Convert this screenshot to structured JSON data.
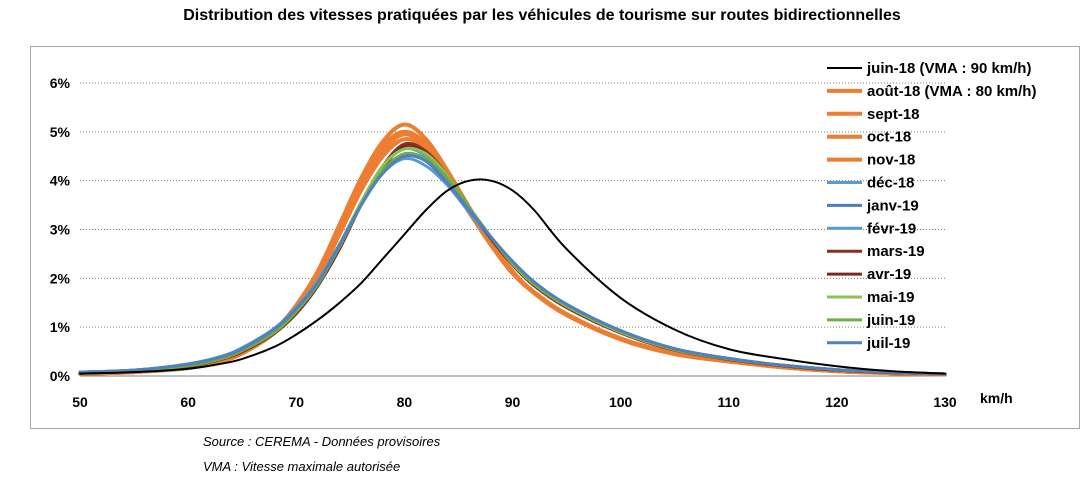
{
  "title": "Distribution des vitesses pratiquées par les véhicules de tourisme sur routes bidirectionnelles",
  "source_note": "Source : CEREMA - Données provisoires",
  "vma_note": "VMA : Vitesse maximale autorisée",
  "chart_data": {
    "type": "line",
    "title": "Distribution des vitesses pratiquées par les véhicules de tourisme sur routes bidirectionnelles",
    "xlabel": "km/h",
    "ylabel": "",
    "xlim": [
      50,
      130
    ],
    "ylim": [
      0,
      6
    ],
    "x_ticks": [
      50,
      60,
      70,
      80,
      90,
      100,
      110,
      120,
      130
    ],
    "y_ticks": [
      {
        "value": 0,
        "label": "0%"
      },
      {
        "value": 1,
        "label": "1%"
      },
      {
        "value": 2,
        "label": "2%"
      },
      {
        "value": 3,
        "label": "3%"
      },
      {
        "value": 4,
        "label": "4%"
      },
      {
        "value": 5,
        "label": "5%"
      },
      {
        "value": 6,
        "label": "6%"
      }
    ],
    "grid": "horizontal dotted",
    "legend_position": "right",
    "x": [
      50,
      55,
      60,
      63,
      65,
      68,
      70,
      72,
      74,
      76,
      78,
      80,
      82,
      84,
      86,
      88,
      90,
      92,
      95,
      100,
      105,
      110,
      115,
      120,
      125,
      130
    ],
    "series": [
      {
        "name": "juin-18 (VMA : 90 km/h)",
        "color": "#000000",
        "width": 2,
        "values": [
          0.05,
          0.08,
          0.15,
          0.25,
          0.35,
          0.6,
          0.85,
          1.15,
          1.5,
          1.9,
          2.4,
          2.9,
          3.4,
          3.8,
          4.0,
          4.0,
          3.8,
          3.4,
          2.6,
          1.6,
          0.95,
          0.55,
          0.35,
          0.2,
          0.1,
          0.05
        ]
      },
      {
        "name": "août-18 (VMA : 80 km/h)",
        "color": "#ed7d31",
        "width": 4,
        "values": [
          0.05,
          0.08,
          0.18,
          0.32,
          0.5,
          0.95,
          1.45,
          2.15,
          3.1,
          4.05,
          4.8,
          5.15,
          4.85,
          4.2,
          3.45,
          2.75,
          2.15,
          1.7,
          1.25,
          0.75,
          0.45,
          0.3,
          0.18,
          0.1,
          0.06,
          0.03
        ]
      },
      {
        "name": "sept-18",
        "color": "#ed7d31",
        "width": 4,
        "values": [
          0.05,
          0.08,
          0.17,
          0.31,
          0.48,
          0.92,
          1.4,
          2.1,
          3.0,
          3.95,
          4.7,
          5.0,
          4.75,
          4.1,
          3.4,
          2.7,
          2.12,
          1.7,
          1.25,
          0.75,
          0.45,
          0.3,
          0.18,
          0.1,
          0.06,
          0.03
        ]
      },
      {
        "name": "oct-18",
        "color": "#ed7d31",
        "width": 4,
        "values": [
          0.05,
          0.08,
          0.17,
          0.3,
          0.47,
          0.9,
          1.38,
          2.05,
          2.95,
          3.9,
          4.6,
          4.95,
          4.7,
          4.05,
          3.35,
          2.68,
          2.1,
          1.7,
          1.25,
          0.76,
          0.46,
          0.3,
          0.18,
          0.1,
          0.06,
          0.03
        ]
      },
      {
        "name": "nov-18",
        "color": "#ed7d31",
        "width": 4,
        "values": [
          0.05,
          0.08,
          0.16,
          0.3,
          0.46,
          0.88,
          1.35,
          2.0,
          2.9,
          3.8,
          4.5,
          4.85,
          4.65,
          4.05,
          3.35,
          2.7,
          2.12,
          1.72,
          1.27,
          0.77,
          0.47,
          0.3,
          0.18,
          0.1,
          0.06,
          0.03
        ]
      },
      {
        "name": "déc-18",
        "color": "#5b9bd5",
        "width": 3,
        "values": [
          0.08,
          0.12,
          0.25,
          0.4,
          0.58,
          0.98,
          1.4,
          1.95,
          2.7,
          3.5,
          4.15,
          4.45,
          4.3,
          3.9,
          3.35,
          2.8,
          2.3,
          1.9,
          1.45,
          0.92,
          0.55,
          0.35,
          0.22,
          0.13,
          0.08,
          0.04
        ]
      },
      {
        "name": "janv-19",
        "color": "#4a7ebb",
        "width": 3,
        "values": [
          0.08,
          0.12,
          0.24,
          0.39,
          0.56,
          0.95,
          1.37,
          1.92,
          2.68,
          3.5,
          4.2,
          4.55,
          4.4,
          3.95,
          3.38,
          2.82,
          2.32,
          1.92,
          1.46,
          0.93,
          0.56,
          0.36,
          0.22,
          0.13,
          0.08,
          0.04
        ]
      },
      {
        "name": "févr-19",
        "color": "#5b9bd5",
        "width": 3,
        "values": [
          0.08,
          0.12,
          0.24,
          0.38,
          0.55,
          0.94,
          1.36,
          1.92,
          2.7,
          3.55,
          4.3,
          4.65,
          4.5,
          4.0,
          3.4,
          2.82,
          2.3,
          1.9,
          1.44,
          0.92,
          0.55,
          0.35,
          0.22,
          0.13,
          0.08,
          0.04
        ]
      },
      {
        "name": "mars-19",
        "color": "#8b2e22",
        "width": 3,
        "values": [
          0.06,
          0.1,
          0.2,
          0.34,
          0.5,
          0.88,
          1.28,
          1.85,
          2.65,
          3.55,
          4.3,
          4.75,
          4.6,
          4.1,
          3.45,
          2.82,
          2.28,
          1.85,
          1.4,
          0.88,
          0.53,
          0.34,
          0.21,
          0.12,
          0.07,
          0.04
        ]
      },
      {
        "name": "avr-19",
        "color": "#7b2a1c",
        "width": 3,
        "values": [
          0.06,
          0.1,
          0.2,
          0.34,
          0.5,
          0.88,
          1.28,
          1.85,
          2.6,
          3.5,
          4.25,
          4.7,
          4.55,
          4.1,
          3.45,
          2.82,
          2.28,
          1.86,
          1.41,
          0.89,
          0.54,
          0.34,
          0.21,
          0.12,
          0.07,
          0.04
        ]
      },
      {
        "name": "mai-19",
        "color": "#8cc152",
        "width": 3,
        "values": [
          0.06,
          0.1,
          0.21,
          0.35,
          0.52,
          0.9,
          1.32,
          1.9,
          2.68,
          3.55,
          4.3,
          4.65,
          4.55,
          4.1,
          3.45,
          2.85,
          2.3,
          1.88,
          1.43,
          0.9,
          0.54,
          0.35,
          0.22,
          0.13,
          0.08,
          0.04
        ]
      },
      {
        "name": "juin-19",
        "color": "#70ad47",
        "width": 3,
        "values": [
          0.06,
          0.1,
          0.21,
          0.35,
          0.52,
          0.9,
          1.32,
          1.88,
          2.65,
          3.5,
          4.2,
          4.55,
          4.45,
          4.05,
          3.45,
          2.85,
          2.32,
          1.9,
          1.45,
          0.92,
          0.55,
          0.35,
          0.22,
          0.13,
          0.08,
          0.04
        ]
      },
      {
        "name": "juil-19",
        "color": "#4f81bd",
        "width": 3,
        "values": [
          0.08,
          0.12,
          0.24,
          0.39,
          0.56,
          0.96,
          1.38,
          1.92,
          2.68,
          3.5,
          4.15,
          4.5,
          4.4,
          3.95,
          3.4,
          2.85,
          2.35,
          1.93,
          1.47,
          0.93,
          0.56,
          0.36,
          0.22,
          0.13,
          0.08,
          0.04
        ]
      }
    ]
  }
}
